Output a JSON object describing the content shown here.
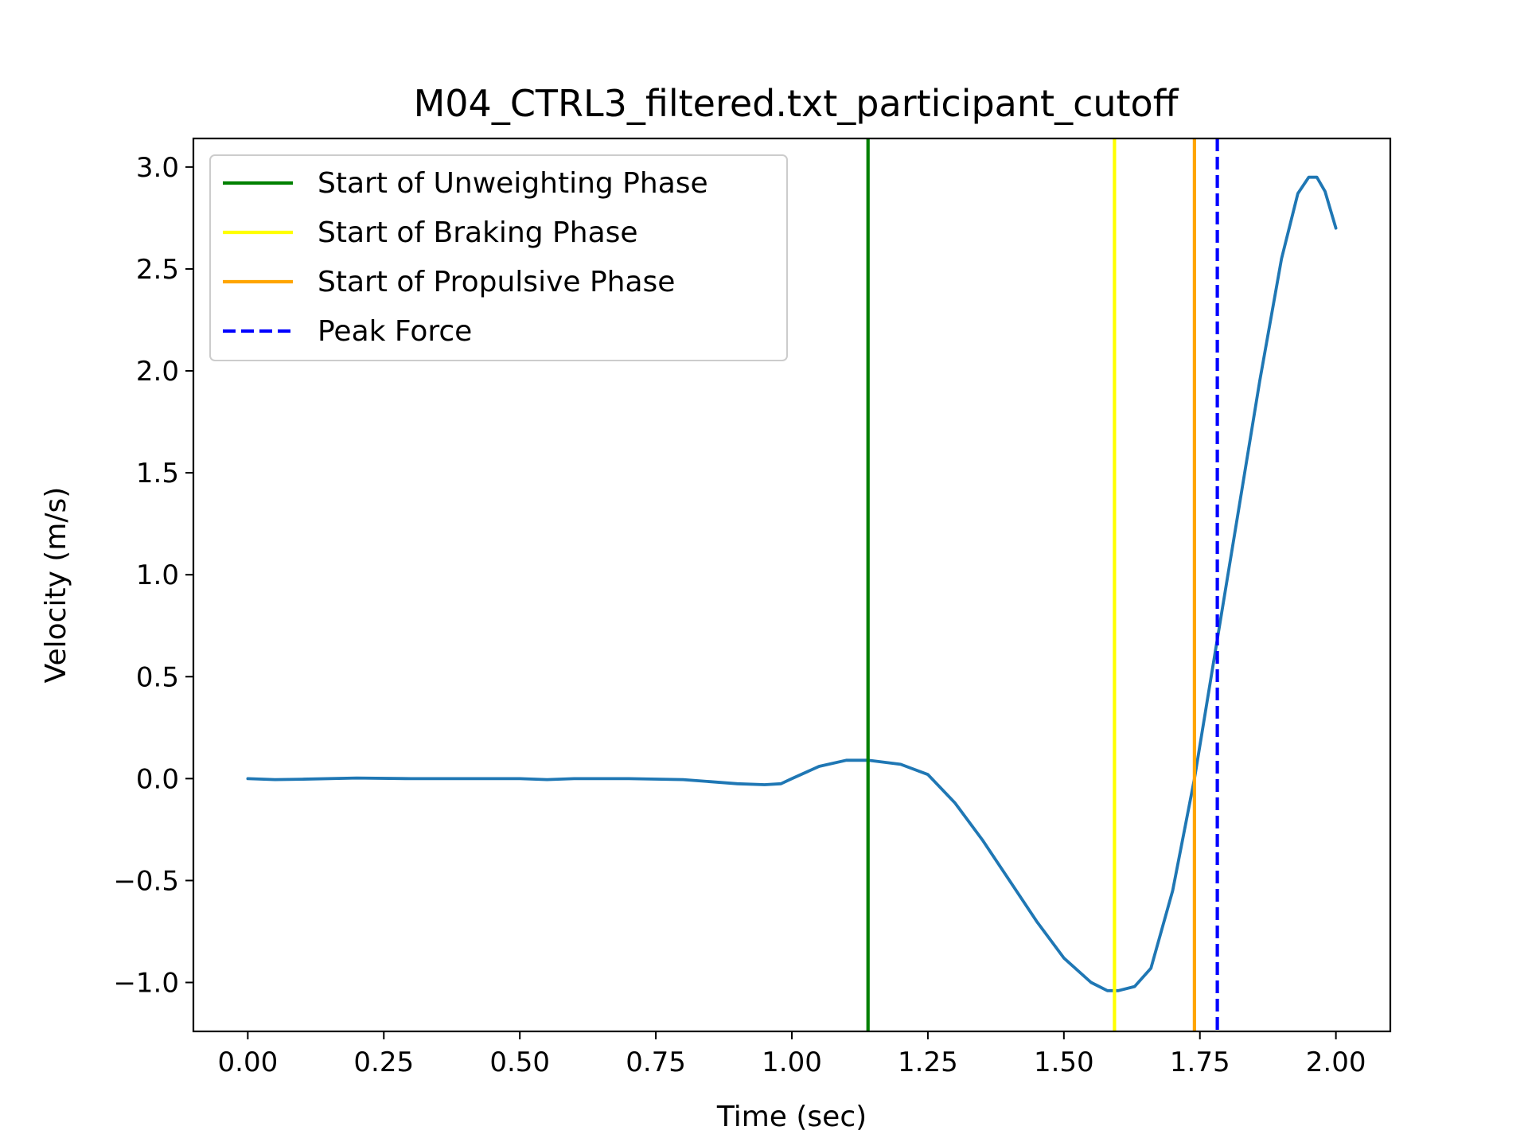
{
  "chart_data": {
    "type": "line",
    "title": "M04_CTRL3_filtered.txt_participant_cutoff",
    "xlabel": "Time (sec)",
    "ylabel": "Velocity (m/s)",
    "xlim": [
      -0.1,
      2.1
    ],
    "ylim": [
      -1.24,
      3.14
    ],
    "xticks": [
      0.0,
      0.25,
      0.5,
      0.75,
      1.0,
      1.25,
      1.5,
      1.75,
      2.0
    ],
    "xtick_labels": [
      "0.00",
      "0.25",
      "0.50",
      "0.75",
      "1.00",
      "1.25",
      "1.50",
      "1.75",
      "2.00"
    ],
    "yticks": [
      -1.0,
      -0.5,
      0.0,
      0.5,
      1.0,
      1.5,
      2.0,
      2.5,
      3.0
    ],
    "ytick_labels": [
      "−1.0",
      "−0.5",
      "0.0",
      "0.5",
      "1.0",
      "1.5",
      "2.0",
      "2.5",
      "3.0"
    ],
    "grid": false,
    "legend_position": "upper left",
    "series": [
      {
        "color": "#1f77b4",
        "x": [
          0.0,
          0.05,
          0.1,
          0.2,
          0.3,
          0.4,
          0.5,
          0.55,
          0.6,
          0.7,
          0.8,
          0.85,
          0.9,
          0.95,
          0.98,
          1.0,
          1.05,
          1.1,
          1.14,
          1.2,
          1.25,
          1.3,
          1.35,
          1.4,
          1.45,
          1.5,
          1.55,
          1.58,
          1.6,
          1.63,
          1.66,
          1.7,
          1.74,
          1.78,
          1.82,
          1.86,
          1.9,
          1.93,
          1.95,
          1.965,
          1.98,
          2.0
        ],
        "y": [
          0.0,
          -0.005,
          -0.003,
          0.003,
          0.0,
          0.0,
          0.0,
          -0.005,
          0.0,
          0.0,
          -0.005,
          -0.015,
          -0.025,
          -0.03,
          -0.025,
          0.0,
          0.06,
          0.09,
          0.09,
          0.07,
          0.02,
          -0.12,
          -0.3,
          -0.5,
          -0.7,
          -0.88,
          -1.0,
          -1.04,
          -1.04,
          -1.02,
          -0.93,
          -0.55,
          0.0,
          0.65,
          1.3,
          1.95,
          2.55,
          2.87,
          2.95,
          2.95,
          2.88,
          2.7
        ]
      }
    ],
    "vlines": [
      {
        "name": "Start of Unweighting Phase",
        "x": 1.14,
        "color": "#008000",
        "style": "solid"
      },
      {
        "name": "Start of Braking Phase",
        "x": 1.593,
        "color": "#ffff00",
        "style": "solid"
      },
      {
        "name": "Start of Propulsive Phase",
        "x": 1.74,
        "color": "#ffa500",
        "style": "solid"
      },
      {
        "name": "Peak Force",
        "x": 1.782,
        "color": "#0000ff",
        "style": "dashed"
      }
    ]
  }
}
